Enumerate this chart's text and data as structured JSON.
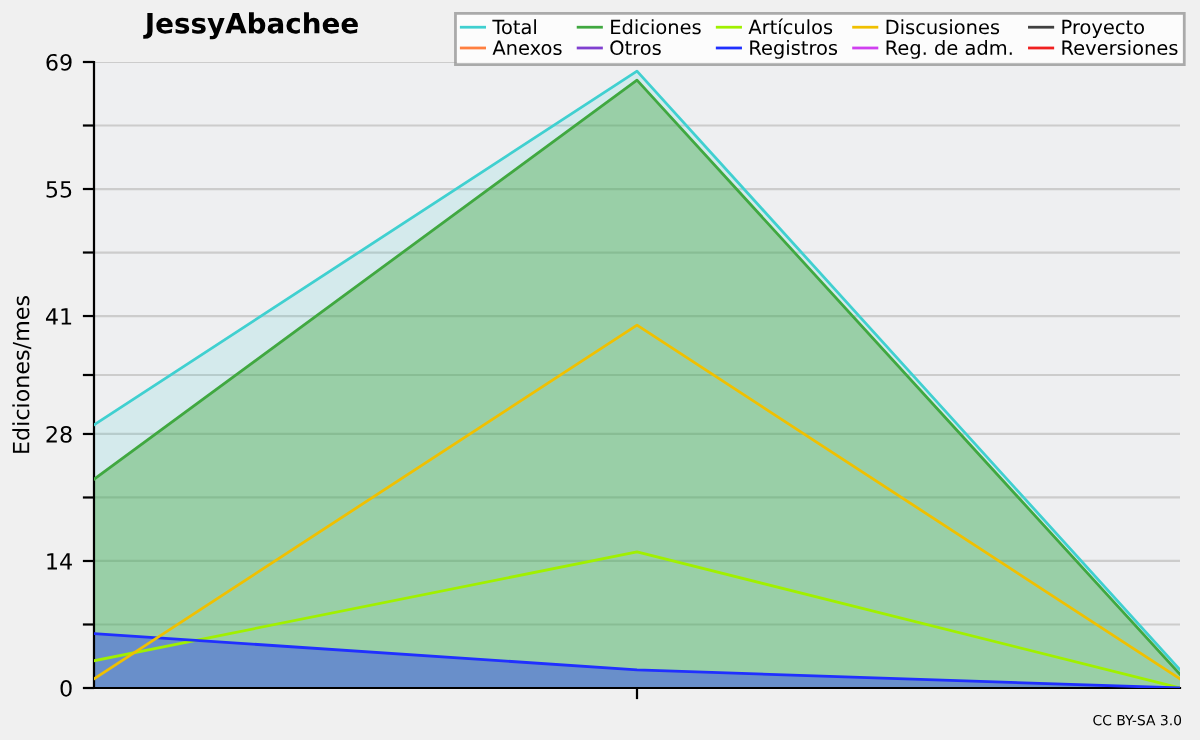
{
  "chart_data": {
    "type": "line",
    "title": "JessyAbachee",
    "ylabel": "Ediciones/mes",
    "categories": [
      null,
      null,
      null
    ],
    "series": [
      {
        "name": "Total",
        "color": "#40d0d0",
        "type": "area",
        "values": [
          29,
          68,
          2
        ]
      },
      {
        "name": "Anexos",
        "color": "#ff7f40",
        "values": [
          null,
          null,
          null
        ]
      },
      {
        "name": "Ediciones",
        "color": "#40a840",
        "type": "area",
        "values": [
          23,
          67,
          1.5
        ]
      },
      {
        "name": "Otros",
        "color": "#8040d0",
        "values": [
          null,
          null,
          null
        ]
      },
      {
        "name": "Artículos",
        "color": "#a0f000",
        "values": [
          3,
          15,
          0
        ]
      },
      {
        "name": "Registros",
        "color": "#2030ff",
        "type": "area",
        "values": [
          6,
          2,
          0
        ]
      },
      {
        "name": "Discusiones",
        "color": "#f0c000",
        "values": [
          1,
          40,
          1
        ]
      },
      {
        "name": "Reg. de adm.",
        "color": "#d040f0",
        "values": [
          null,
          null,
          null
        ]
      },
      {
        "name": "Proyecto",
        "color": "#404040",
        "values": [
          null,
          null,
          null
        ]
      },
      {
        "name": "Reversiones",
        "color": "#f02020",
        "values": [
          null,
          null,
          null
        ]
      }
    ],
    "ylim": [
      0,
      69
    ],
    "yticks": [
      0,
      {
        "value": 7,
        "label": null
      },
      14,
      {
        "value": 21,
        "label": null
      },
      28,
      {
        "value": 34.5,
        "label": null
      },
      41,
      {
        "value": 48,
        "label": null
      },
      55,
      {
        "value": 62,
        "label": null
      },
      69
    ],
    "grid": "y",
    "legend": "top right",
    "annotations": [
      "CC BY-SA 3.0"
    ]
  }
}
